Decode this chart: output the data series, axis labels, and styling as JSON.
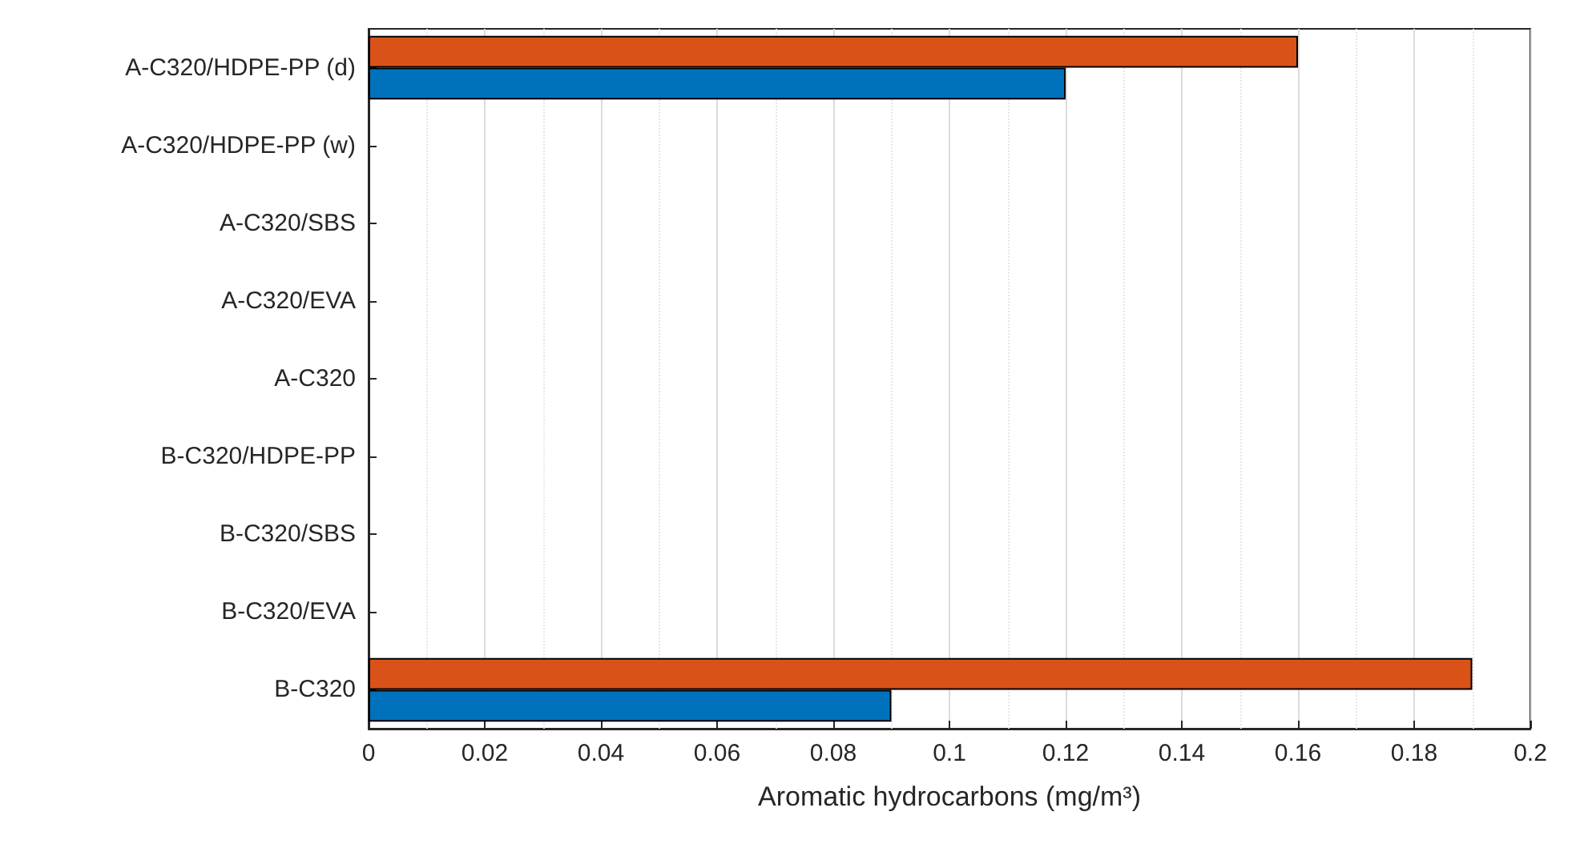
{
  "chart_data": {
    "type": "bar",
    "orientation": "horizontal",
    "xlabel": "Aromatic hydrocarbons (mg/m³)",
    "categories": [
      "A-C320/HDPE-PP (d)",
      "A-C320/HDPE-PP (w)",
      "A-C320/SBS",
      "A-C320/EVA",
      "A-C320",
      "B-C320/HDPE-PP",
      "B-C320/SBS",
      "B-C320/EVA",
      "B-C320"
    ],
    "series": [
      {
        "color": "#d95319",
        "values": [
          0.16,
          null,
          null,
          null,
          null,
          null,
          null,
          null,
          0.19
        ]
      },
      {
        "color": "#0072bd",
        "values": [
          0.12,
          null,
          null,
          null,
          null,
          null,
          null,
          null,
          0.09
        ]
      }
    ],
    "xlim": [
      0,
      0.2
    ],
    "xticks": [
      0,
      0.02,
      0.04,
      0.06,
      0.08,
      0.1,
      0.12,
      0.14,
      0.16,
      0.18,
      0.2
    ],
    "grid": "x"
  }
}
